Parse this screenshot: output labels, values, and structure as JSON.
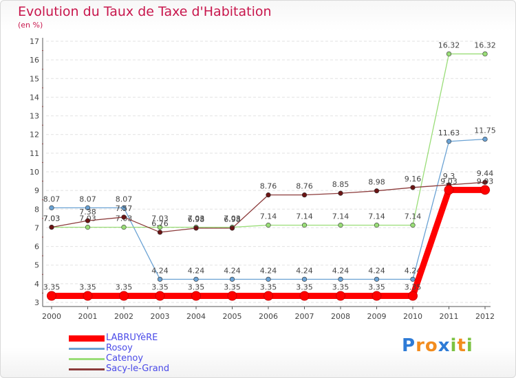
{
  "page": {
    "title": "Evolution du Taux de Taxe d'Habitation",
    "subtitle": "(en %)",
    "logo_letters": [
      "P",
      "r",
      "o",
      "x",
      "i",
      "t",
      "i"
    ],
    "logo_colors": [
      "#2e7bd6",
      "#f28c1e",
      "#f28c1e",
      "#2e7bd6",
      "#7cc242",
      "#f28c1e",
      "#7cc242"
    ]
  },
  "chart_data": {
    "type": "line",
    "title": "Evolution du Taux de Taxe d'Habitation",
    "ylabel": "(en %)",
    "xlabel": "",
    "x": [
      "2000",
      "2001",
      "2002",
      "2003",
      "2004",
      "2005",
      "2006",
      "2007",
      "2008",
      "2009",
      "2010",
      "2011",
      "2012"
    ],
    "ylim": [
      3,
      17
    ],
    "yticks": [
      3,
      4,
      5,
      6,
      7,
      8,
      9,
      10,
      11,
      12,
      13,
      14,
      15,
      16,
      17
    ],
    "grid": "horizontal dashed",
    "legend_position": "bottom-left",
    "series": [
      {
        "name": "LABRUYèRE",
        "color": "#ff0000",
        "values": [
          3.35,
          3.35,
          3.35,
          3.35,
          3.35,
          3.35,
          3.35,
          3.35,
          3.35,
          3.35,
          3.35,
          9.03,
          9.03
        ]
      },
      {
        "name": "Rosoy",
        "color": "#6aa2d4",
        "values": [
          8.07,
          8.07,
          8.07,
          4.24,
          4.24,
          4.24,
          4.24,
          4.24,
          4.24,
          4.24,
          4.24,
          11.63,
          11.75
        ]
      },
      {
        "name": "Catenoy",
        "color": "#99dd77",
        "values": [
          7.03,
          7.03,
          7.03,
          7.03,
          7.03,
          7.03,
          7.14,
          7.14,
          7.14,
          7.14,
          7.14,
          16.32,
          16.32
        ]
      },
      {
        "name": "Sacy-le-Grand",
        "color": "#8b3a3a",
        "values": [
          7.03,
          7.38,
          7.57,
          6.76,
          6.98,
          6.98,
          8.76,
          8.76,
          8.85,
          8.98,
          9.16,
          9.3,
          9.44
        ]
      }
    ]
  }
}
